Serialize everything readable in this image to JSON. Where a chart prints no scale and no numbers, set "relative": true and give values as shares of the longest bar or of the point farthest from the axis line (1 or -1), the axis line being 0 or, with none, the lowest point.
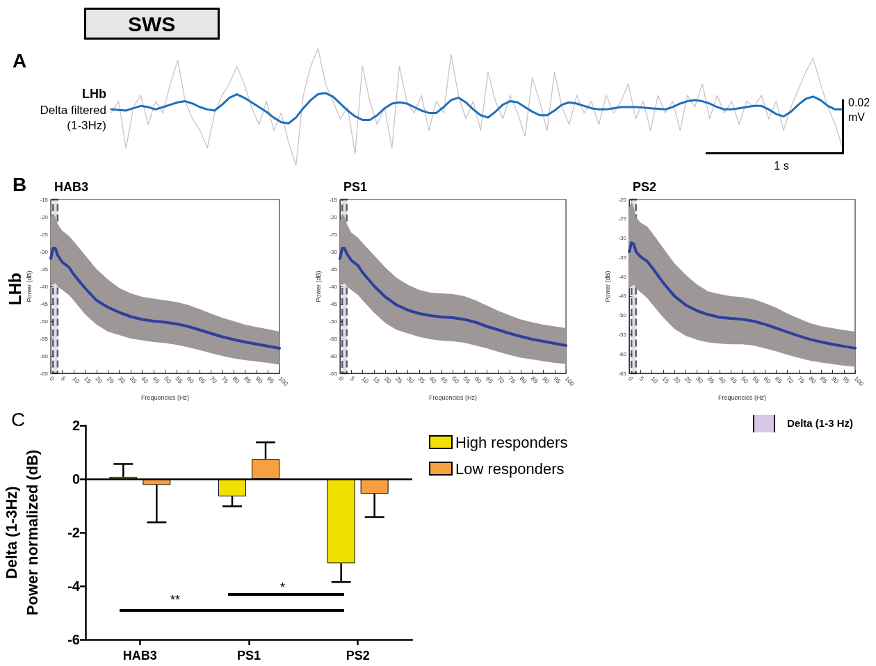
{
  "chart_data": [
    {
      "type": "line",
      "title": "SWS",
      "relative": true,
      "categories": [
        null,
        null,
        null,
        null,
        null,
        null,
        null,
        null,
        null,
        null,
        null,
        null,
        null,
        null,
        null,
        null,
        null,
        null,
        null,
        null,
        null,
        null,
        null,
        null,
        null,
        null,
        null,
        null,
        null,
        null,
        null,
        null,
        null,
        null,
        null,
        null,
        null,
        null,
        null,
        null,
        null,
        null,
        null,
        null,
        null,
        null,
        null,
        null,
        null,
        null,
        null,
        null,
        null,
        null,
        null,
        null,
        null,
        null,
        null,
        null,
        null,
        null,
        null,
        null,
        null,
        null,
        null,
        null,
        null,
        null,
        null,
        null,
        null,
        null,
        null,
        null,
        null,
        null,
        null,
        null,
        null,
        null,
        null,
        null,
        null,
        null,
        null,
        null,
        null,
        null,
        null,
        null,
        null,
        null,
        null,
        null,
        null,
        null,
        null,
        null
      ],
      "series": [
        {
          "color": "#c8c4c4",
          "values": [
            0.45,
            0.55,
            0.15,
            0.5,
            0.6,
            0.35,
            0.55,
            0.45,
            0.7,
            0.9,
            0.55,
            0.4,
            0.3,
            0.15,
            0.45,
            0.6,
            0.7,
            0.85,
            0.7,
            0.5,
            0.35,
            0.55,
            0.3,
            0.45,
            0.2,
            0.0,
            0.6,
            0.85,
            1.0,
            0.7,
            0.55,
            0.4,
            0.5,
            0.1,
            0.85,
            0.55,
            0.35,
            0.5,
            0.15,
            0.85,
            0.55,
            0.45,
            0.6,
            0.3,
            0.55,
            0.45,
            0.95,
            0.6,
            0.4,
            0.55,
            0.3,
            0.8,
            0.55,
            0.4,
            0.6,
            0.45,
            0.25,
            0.75,
            0.55,
            0.3,
            0.8,
            0.5,
            0.35,
            0.6,
            0.45,
            0.55,
            0.35,
            0.6,
            0.45,
            0.55,
            0.7,
            0.4,
            0.55,
            0.3,
            0.6,
            0.45,
            0.55,
            0.3,
            0.6,
            0.5,
            0.7,
            0.4,
            0.6,
            0.45,
            0.55,
            0.35,
            0.55,
            0.5,
            0.6,
            0.4,
            0.55,
            0.3,
            0.5,
            0.65,
            0.8,
            0.92,
            0.7,
            0.5,
            0.35,
            0.15
          ]
        },
        {
          "color": "#1f70b8",
          "values": [
            0.48,
            0.475,
            0.47,
            0.49,
            0.51,
            0.5,
            0.48,
            0.5,
            0.52,
            0.54,
            0.55,
            0.53,
            0.5,
            0.48,
            0.47,
            0.52,
            0.58,
            0.61,
            0.58,
            0.54,
            0.5,
            0.46,
            0.41,
            0.37,
            0.36,
            0.41,
            0.49,
            0.56,
            0.61,
            0.62,
            0.59,
            0.53,
            0.47,
            0.42,
            0.39,
            0.39,
            0.43,
            0.49,
            0.53,
            0.54,
            0.53,
            0.5,
            0.47,
            0.45,
            0.45,
            0.5,
            0.56,
            0.58,
            0.54,
            0.48,
            0.43,
            0.41,
            0.46,
            0.52,
            0.55,
            0.54,
            0.5,
            0.46,
            0.43,
            0.43,
            0.47,
            0.52,
            0.54,
            0.53,
            0.51,
            0.49,
            0.48,
            0.48,
            0.49,
            0.5,
            0.5,
            0.5,
            0.495,
            0.49,
            0.485,
            0.48,
            0.5,
            0.53,
            0.55,
            0.56,
            0.55,
            0.53,
            0.5,
            0.48,
            0.48,
            0.49,
            0.5,
            0.51,
            0.51,
            0.48,
            0.44,
            0.42,
            0.46,
            0.52,
            0.57,
            0.59,
            0.56,
            0.51,
            0.48,
            0.48
          ]
        }
      ],
      "annotations": [
        "A",
        "LHb",
        "Delta filtered (1-3Hz)",
        "0.02 mV",
        "1 s"
      ]
    },
    {
      "type": "line",
      "title": "HAB3",
      "xlabel": "Frequencies (Hz)",
      "ylabel": "Power (dB)",
      "x": [
        0,
        1,
        2,
        3,
        5,
        8,
        10,
        15,
        20,
        25,
        30,
        35,
        40,
        45,
        50,
        55,
        60,
        65,
        70,
        75,
        80,
        85,
        90,
        95,
        100
      ],
      "series": [
        {
          "color": "#2e3f9e",
          "values": [
            -32,
            -29,
            -29,
            -31,
            -33,
            -34.5,
            -36.5,
            -40.5,
            -44,
            -46,
            -47.5,
            -48.7,
            -49.5,
            -50,
            -50.3,
            -50.8,
            -51.5,
            -52.5,
            -53.5,
            -54.5,
            -55.3,
            -56,
            -56.6,
            -57.2,
            -57.8
          ],
          "upper": [
            -20,
            -19,
            -20,
            -22,
            -24,
            -25.5,
            -27,
            -31,
            -35,
            -38,
            -40.5,
            -42,
            -43,
            -43.5,
            -44,
            -44.5,
            -45.3,
            -46.5,
            -47.8,
            -49,
            -50,
            -51,
            -51.7,
            -52.3,
            -53
          ],
          "lower": [
            -40,
            -39.5,
            -39,
            -40,
            -41,
            -42.5,
            -44,
            -48,
            -51,
            -53,
            -54,
            -55,
            -55.5,
            -56,
            -56.3,
            -56.8,
            -57.5,
            -58.3,
            -59.2,
            -60,
            -60.7,
            -61.2,
            -61.6,
            -62,
            -62.5
          ]
        }
      ],
      "xlim": [
        0,
        100
      ],
      "xticks": [
        0,
        5,
        10,
        15,
        20,
        25,
        30,
        35,
        40,
        45,
        50,
        55,
        60,
        65,
        70,
        75,
        80,
        85,
        90,
        95,
        100
      ],
      "ylim": [
        -65,
        -15
      ],
      "yticks": [
        -65,
        -60,
        -55,
        -50,
        -45,
        -40,
        -35,
        -30,
        -25,
        -20,
        -15
      ],
      "bands": [
        {
          "axis": "x",
          "from": 1,
          "to": 3,
          "color": "#d9c8e3"
        }
      ],
      "annotations": [
        "B",
        "LHb"
      ]
    },
    {
      "type": "line",
      "title": "PS1",
      "xlabel": "Frequencies (Hz)",
      "ylabel": "Power (dB)",
      "x": [
        0,
        1,
        2,
        3,
        5,
        8,
        10,
        15,
        20,
        25,
        30,
        35,
        40,
        45,
        50,
        55,
        60,
        65,
        70,
        75,
        80,
        85,
        90,
        95,
        100
      ],
      "series": [
        {
          "color": "#2e3f9e",
          "values": [
            -32,
            -29,
            -29,
            -30.5,
            -32.5,
            -34,
            -36,
            -39.8,
            -43,
            -45.3,
            -46.8,
            -47.8,
            -48.4,
            -48.8,
            -49,
            -49.5,
            -50.3,
            -51.5,
            -52.5,
            -53.5,
            -54.4,
            -55.2,
            -55.8,
            -56.4,
            -57
          ],
          "upper": [
            -21,
            -19,
            -20,
            -22,
            -24.5,
            -26,
            -27.5,
            -31,
            -34.5,
            -37.5,
            -39.5,
            -41,
            -41.8,
            -42,
            -42.2,
            -42.8,
            -44,
            -45.5,
            -47,
            -48.3,
            -49.5,
            -50.3,
            -51,
            -51.5,
            -52
          ],
          "lower": [
            -40,
            -39,
            -39,
            -40,
            -41,
            -42.5,
            -44,
            -47.5,
            -50.5,
            -52.5,
            -53.5,
            -54.5,
            -55.2,
            -55.6,
            -55.8,
            -56.2,
            -57,
            -57.8,
            -58.8,
            -59.7,
            -60.5,
            -61,
            -61.5,
            -62,
            -62.3
          ]
        }
      ],
      "xlim": [
        0,
        100
      ],
      "xticks": [
        0,
        5,
        10,
        15,
        20,
        25,
        30,
        35,
        40,
        45,
        50,
        55,
        60,
        65,
        70,
        75,
        80,
        85,
        90,
        95,
        100
      ],
      "ylim": [
        -65,
        -15
      ],
      "yticks": [
        -65,
        -60,
        -55,
        -50,
        -45,
        -40,
        -35,
        -30,
        -25,
        -20,
        -15
      ],
      "bands": [
        {
          "axis": "x",
          "from": 1,
          "to": 3,
          "color": "#d9c8e3"
        }
      ]
    },
    {
      "type": "line",
      "title": "PS2",
      "xlabel": "Frequencies (Hz)",
      "ylabel": "Power (dB)",
      "x": [
        0,
        1,
        2,
        3,
        5,
        8,
        10,
        15,
        20,
        25,
        30,
        35,
        40,
        45,
        50,
        55,
        60,
        65,
        70,
        75,
        80,
        85,
        90,
        95,
        100
      ],
      "series": [
        {
          "color": "#2e3f9e",
          "values": [
            -33.5,
            -31.2,
            -31.5,
            -33.5,
            -34.8,
            -36,
            -37.5,
            -41.5,
            -45,
            -47.3,
            -48.8,
            -49.8,
            -50.5,
            -50.8,
            -51,
            -51.5,
            -52.3,
            -53.3,
            -54.3,
            -55.3,
            -56.2,
            -56.9,
            -57.5,
            -58,
            -58.5
          ],
          "upper": [
            -22,
            -20.5,
            -22,
            -24.5,
            -26,
            -27,
            -28.5,
            -32.5,
            -36.5,
            -39.5,
            -42,
            -43.8,
            -44.5,
            -45,
            -45.3,
            -45.8,
            -46.8,
            -48,
            -49.5,
            -50.8,
            -52,
            -52.8,
            -53.3,
            -53.8,
            -54.2
          ],
          "lower": [
            -43,
            -42.5,
            -42,
            -43,
            -44,
            -45.5,
            -47,
            -50.5,
            -53.5,
            -55.3,
            -56.3,
            -57,
            -57.3,
            -57.5,
            -57.5,
            -57.8,
            -58.5,
            -59.3,
            -60.2,
            -61,
            -61.7,
            -62.2,
            -62.6,
            -63,
            -63.3
          ]
        }
      ],
      "xlim": [
        0,
        100
      ],
      "xticks": [
        0,
        5,
        10,
        15,
        20,
        25,
        30,
        35,
        40,
        45,
        50,
        55,
        60,
        65,
        70,
        75,
        80,
        85,
        90,
        95,
        100
      ],
      "ylim": [
        -65,
        -20
      ],
      "yticks": [
        -65,
        -60,
        -55,
        -50,
        -45,
        -40,
        -35,
        -30,
        -25,
        -20
      ],
      "bands": [
        {
          "axis": "x",
          "from": 1,
          "to": 3,
          "color": "#d9c8e3",
          "label": "Delta (1-3 Hz)"
        }
      ]
    },
    {
      "type": "bar",
      "ylabel": "Delta (1-3Hz)\nPower normalized (dB)",
      "categories": [
        "HAB3",
        "PS1",
        "PS2"
      ],
      "series": [
        {
          "name": "High responders",
          "color": "#f2e000",
          "values": [
            0.08,
            -0.65,
            -3.15
          ],
          "errors": [
            [
              0.08,
              0.56
            ],
            [
              -1.02,
              -0.65
            ],
            [
              -3.85,
              -3.15
            ]
          ]
        },
        {
          "name": "Low responders",
          "color": "#f7a040",
          "values": [
            -0.22,
            0.75,
            -0.55
          ],
          "errors": [
            [
              -1.62,
              -0.22
            ],
            [
              0.75,
              1.37
            ],
            [
              -1.42,
              -0.55
            ]
          ]
        }
      ],
      "ylim": [
        -6,
        2
      ],
      "yticks": [
        -6,
        -4,
        -2,
        0,
        2
      ],
      "ref_lines": [
        {
          "axis": "y",
          "value": 0
        }
      ],
      "legend": "top right",
      "annotations": [
        "C",
        "**",
        "*"
      ]
    }
  ]
}
